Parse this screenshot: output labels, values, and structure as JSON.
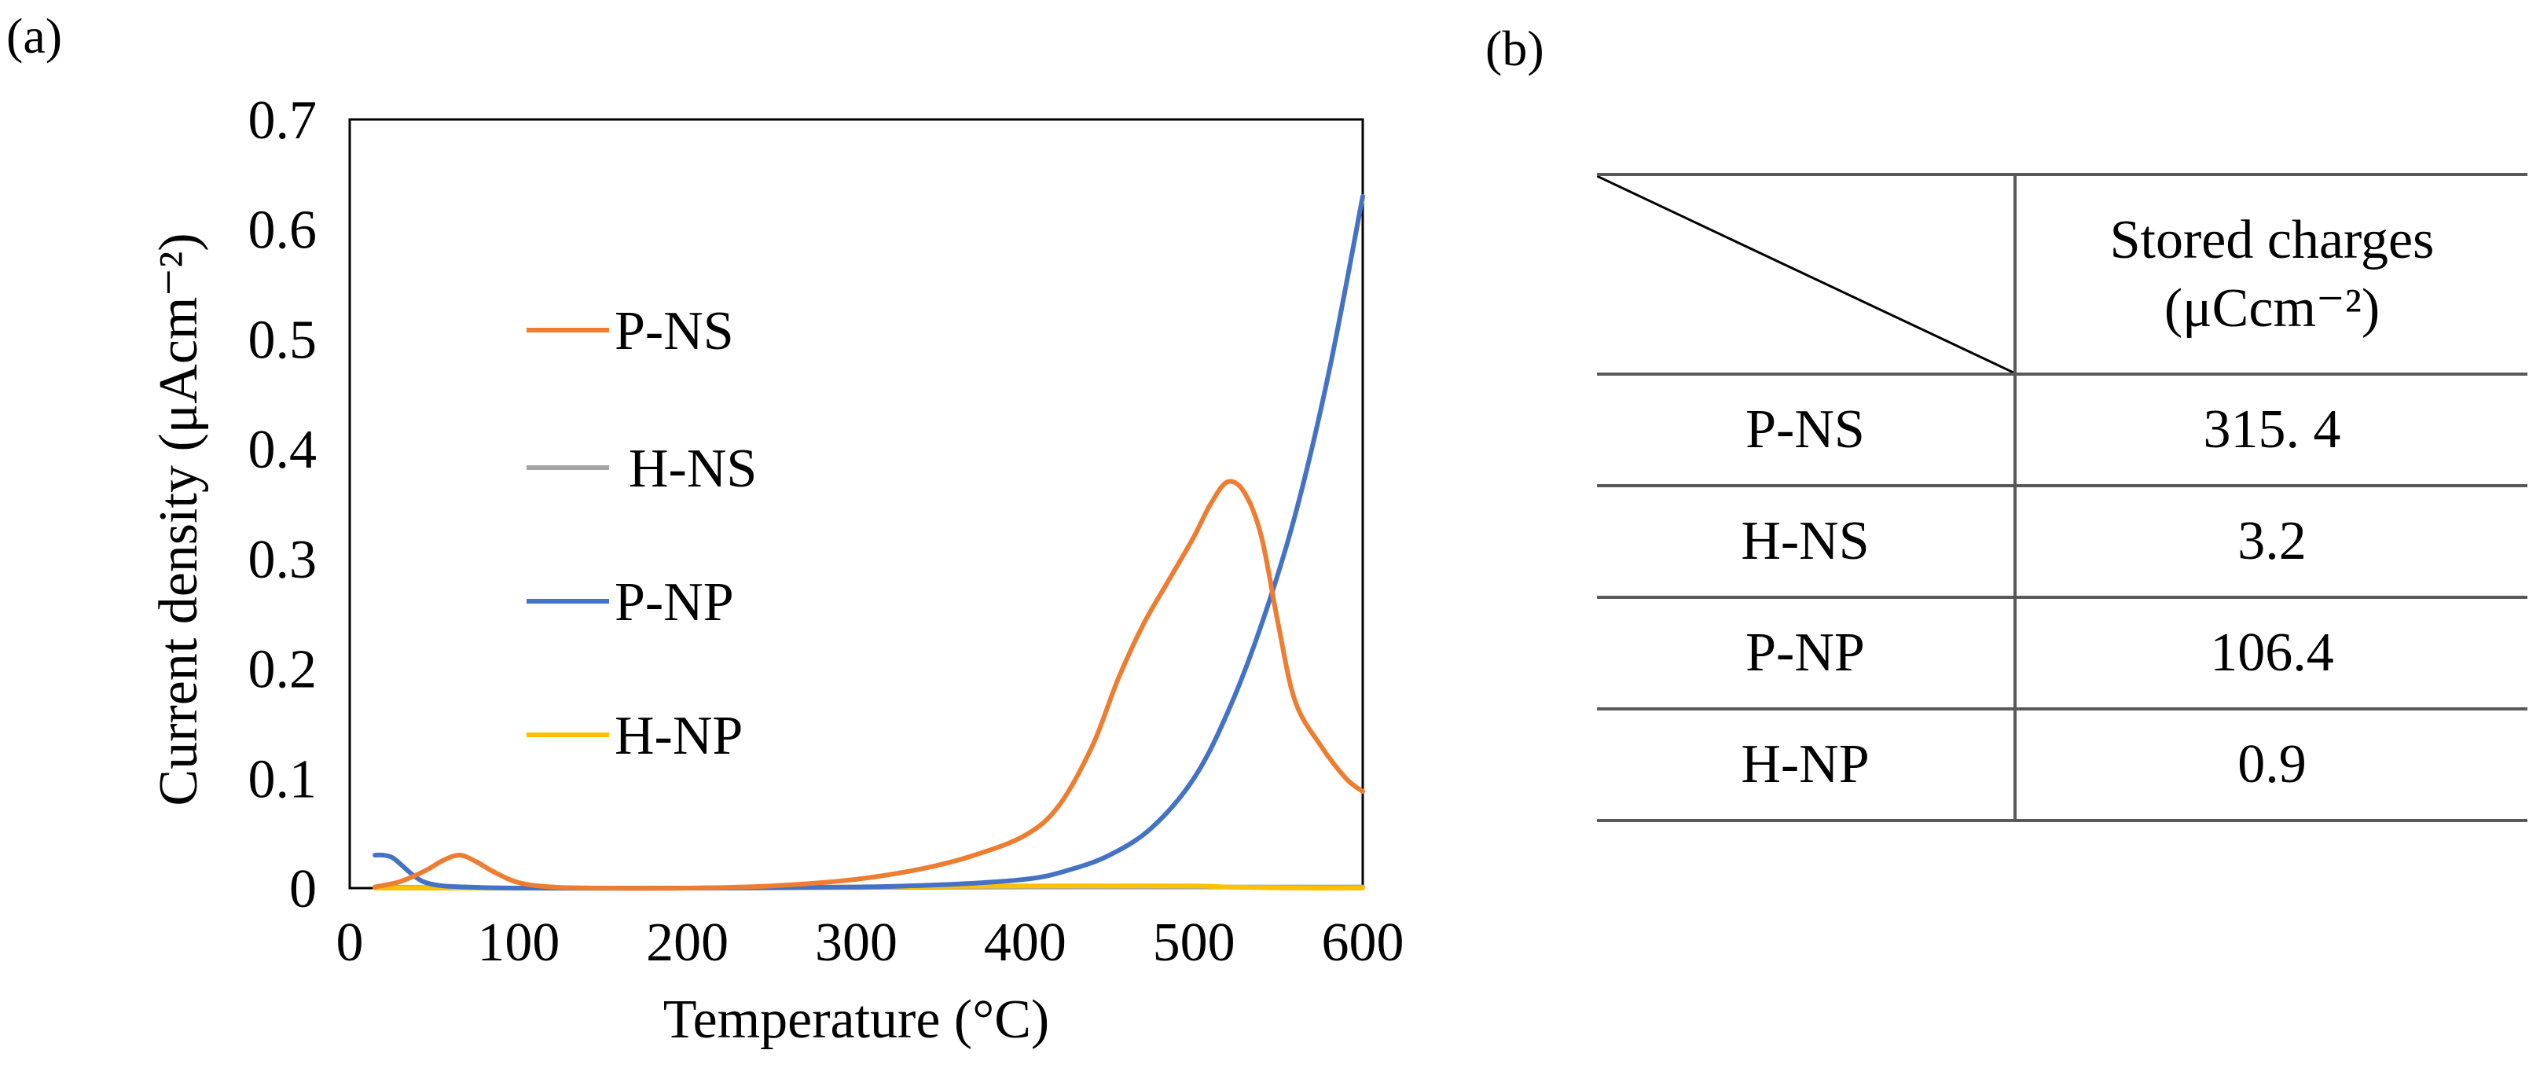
{
  "panels": {
    "a_label": "(a)",
    "b_label": "(b)"
  },
  "chart_data": {
    "type": "line",
    "title": "",
    "xlabel": "Temperature (°C)",
    "ylabel": "Current density (μAcm⁻²)",
    "xlim": [
      0,
      600
    ],
    "ylim": [
      0,
      0.7
    ],
    "xticks": [
      "0",
      "100",
      "200",
      "300",
      "400",
      "500",
      "600"
    ],
    "yticks": [
      "0",
      "0.1",
      "0.2",
      "0.3",
      "0.4",
      "0.5",
      "0.6",
      "0.7"
    ],
    "legend_position": "left-center",
    "series": [
      {
        "name": "P-NS",
        "color": "#ED7D31",
        "x": [
          15,
          30,
          45,
          55,
          65,
          75,
          85,
          100,
          120,
          150,
          200,
          250,
          300,
          340,
          370,
          400,
          420,
          440,
          455,
          470,
          485,
          500,
          510,
          520,
          530,
          540,
          550,
          560,
          575,
          590,
          600
        ],
        "y": [
          0.001,
          0.006,
          0.016,
          0.025,
          0.03,
          0.024,
          0.015,
          0.005,
          0.001,
          0.0,
          0.0,
          0.002,
          0.008,
          0.018,
          0.03,
          0.048,
          0.075,
          0.13,
          0.19,
          0.24,
          0.28,
          0.32,
          0.35,
          0.37,
          0.36,
          0.32,
          0.24,
          0.17,
          0.13,
          0.1,
          0.088
        ]
      },
      {
        "name": "H-NS",
        "color": "#A5A5A5",
        "x": [
          15,
          100,
          200,
          300,
          400,
          500,
          600
        ],
        "y": [
          0.001,
          0.0,
          0.0,
          0.0005,
          0.001,
          0.001,
          0.001
        ]
      },
      {
        "name": "P-NP",
        "color": "#4472C4",
        "x": [
          15,
          20,
          25,
          30,
          35,
          40,
          45,
          55,
          70,
          100,
          200,
          300,
          350,
          400,
          425,
          450,
          475,
          500,
          520,
          540,
          560,
          580,
          600
        ],
        "y": [
          0.03,
          0.03,
          0.028,
          0.022,
          0.015,
          0.009,
          0.005,
          0.002,
          0.001,
          0.0,
          0.0,
          0.001,
          0.003,
          0.008,
          0.016,
          0.03,
          0.055,
          0.1,
          0.16,
          0.24,
          0.34,
          0.47,
          0.63
        ]
      },
      {
        "name": "H-NP",
        "color": "#FFC000",
        "x": [
          15,
          100,
          200,
          300,
          400,
          450,
          500,
          520,
          560,
          600
        ],
        "y": [
          0.0,
          0.0,
          0.0,
          0.001,
          0.002,
          0.002,
          0.002,
          0.001,
          0.0,
          0.0
        ]
      }
    ]
  },
  "table": {
    "header": {
      "line1": "Stored charges",
      "line2": "(μCcm⁻²)"
    },
    "rows": [
      {
        "sample": "P-NS",
        "value": "315. 4"
      },
      {
        "sample": "H-NS",
        "value": "3.2"
      },
      {
        "sample": "P-NP",
        "value": "106.4"
      },
      {
        "sample": "H-NP",
        "value": "0.9"
      }
    ]
  }
}
